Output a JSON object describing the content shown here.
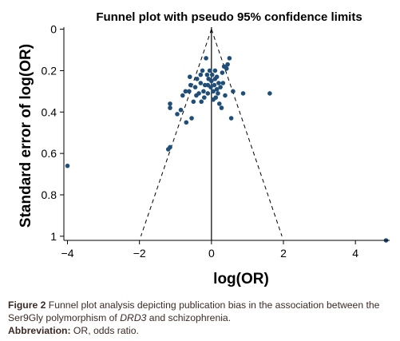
{
  "chart_data": {
    "type": "scatter",
    "title": "Funnel plot with pseudo 95% confidence limits",
    "xlabel": "log(OR)",
    "ylabel": "Standard error of log(OR)",
    "xlim": [
      -4.1,
      4.95
    ],
    "ylim": [
      1.02,
      -0.01
    ],
    "y_reversed": true,
    "xticks": [
      -4,
      -2,
      0,
      2,
      4
    ],
    "yticks": [
      0,
      0.2,
      0.4,
      0.6,
      0.8,
      1
    ],
    "grid": false,
    "legend": "none",
    "marker_color": "#1f4e79",
    "reference_line": {
      "x": 0
    },
    "confidence_limits": {
      "apex": [
        0,
        0
      ],
      "at_se": 1,
      "lower": -1.96,
      "upper": 1.96
    },
    "points": [
      {
        "x": -4.0,
        "y": 0.66
      },
      {
        "x": 4.85,
        "y": 1.02
      },
      {
        "x": 1.62,
        "y": 0.31
      },
      {
        "x": 0.88,
        "y": 0.31
      },
      {
        "x": -1.15,
        "y": 0.57
      },
      {
        "x": -1.2,
        "y": 0.58
      },
      {
        "x": -1.15,
        "y": 0.36
      },
      {
        "x": -1.15,
        "y": 0.38
      },
      {
        "x": -0.85,
        "y": 0.39
      },
      {
        "x": -0.95,
        "y": 0.41
      },
      {
        "x": -0.8,
        "y": 0.32
      },
      {
        "x": -0.7,
        "y": 0.45
      },
      {
        "x": -0.72,
        "y": 0.3
      },
      {
        "x": -0.6,
        "y": 0.23
      },
      {
        "x": -0.55,
        "y": 0.43
      },
      {
        "x": -0.5,
        "y": 0.35
      },
      {
        "x": -0.45,
        "y": 0.28
      },
      {
        "x": -0.4,
        "y": 0.24
      },
      {
        "x": -0.35,
        "y": 0.31
      },
      {
        "x": -0.3,
        "y": 0.26
      },
      {
        "x": -0.28,
        "y": 0.35
      },
      {
        "x": -0.25,
        "y": 0.2
      },
      {
        "x": -0.22,
        "y": 0.3
      },
      {
        "x": -0.2,
        "y": 0.33
      },
      {
        "x": -0.15,
        "y": 0.14
      },
      {
        "x": -0.12,
        "y": 0.22
      },
      {
        "x": -0.1,
        "y": 0.27
      },
      {
        "x": -0.1,
        "y": 0.31
      },
      {
        "x": -0.08,
        "y": 0.24
      },
      {
        "x": -0.05,
        "y": 0.2
      },
      {
        "x": -0.02,
        "y": 0.28
      },
      {
        "x": 0.0,
        "y": 0.25
      },
      {
        "x": 0.02,
        "y": 0.22
      },
      {
        "x": 0.05,
        "y": 0.3
      },
      {
        "x": 0.08,
        "y": 0.27
      },
      {
        "x": 0.1,
        "y": 0.24
      },
      {
        "x": 0.12,
        "y": 0.33
      },
      {
        "x": 0.15,
        "y": 0.29
      },
      {
        "x": 0.18,
        "y": 0.31
      },
      {
        "x": 0.2,
        "y": 0.26
      },
      {
        "x": 0.22,
        "y": 0.36
      },
      {
        "x": 0.25,
        "y": 0.28
      },
      {
        "x": 0.28,
        "y": 0.38
      },
      {
        "x": 0.3,
        "y": 0.21
      },
      {
        "x": 0.35,
        "y": 0.18
      },
      {
        "x": 0.38,
        "y": 0.32
      },
      {
        "x": 0.42,
        "y": 0.19
      },
      {
        "x": 0.45,
        "y": 0.17
      },
      {
        "x": 0.5,
        "y": 0.14
      },
      {
        "x": 0.55,
        "y": 0.43
      },
      {
        "x": 0.6,
        "y": 0.3
      },
      {
        "x": -0.62,
        "y": 0.3
      },
      {
        "x": -0.58,
        "y": 0.27
      },
      {
        "x": 0.15,
        "y": 0.23
      },
      {
        "x": -0.3,
        "y": 0.22
      },
      {
        "x": 0.05,
        "y": 0.34
      },
      {
        "x": -0.18,
        "y": 0.27
      },
      {
        "x": 0.32,
        "y": 0.26
      },
      {
        "x": -0.42,
        "y": 0.32
      },
      {
        "x": 0.1,
        "y": 0.2
      }
    ]
  },
  "caption": {
    "figure_label": "Figure 2",
    "text_before": " Funnel plot analysis depicting publication bias in the association between the Ser9Gly polymorphism of ",
    "gene_italic": "DRD3",
    "text_after": " and schizophrenia.",
    "abbrev_label": "Abbreviation:",
    "abbrev_text": " OR, odds ratio."
  }
}
